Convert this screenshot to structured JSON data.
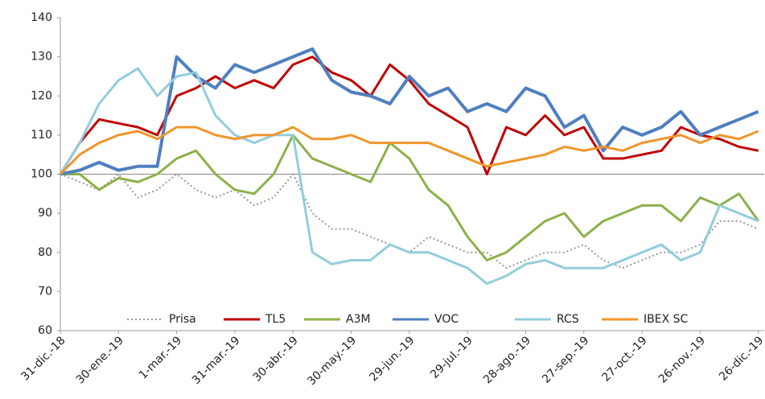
{
  "chart_data": {
    "type": "line",
    "x": [
      0,
      10,
      20,
      30,
      40,
      50,
      60,
      70,
      80,
      90,
      100,
      110,
      120,
      130,
      140,
      150,
      160,
      170,
      180,
      190,
      200,
      210,
      220,
      230,
      240,
      250,
      260,
      270,
      280,
      290,
      300,
      310,
      320,
      330,
      340,
      350,
      360
    ],
    "xlim": [
      0,
      363
    ],
    "xticks": [
      {
        "value": 0,
        "label": "31-dic.-18"
      },
      {
        "value": 30,
        "label": "30-ene.-19"
      },
      {
        "value": 60,
        "label": "1-mar.-19"
      },
      {
        "value": 90,
        "label": "31-mar.-19"
      },
      {
        "value": 120,
        "label": "30-abr.-19"
      },
      {
        "value": 150,
        "label": "30-may.-19"
      },
      {
        "value": 180,
        "label": "29-jun.-19"
      },
      {
        "value": 210,
        "label": "29-jul.-19"
      },
      {
        "value": 240,
        "label": "28-ago.-19"
      },
      {
        "value": 270,
        "label": "27-sep.-19"
      },
      {
        "value": 300,
        "label": "27-oct.-19"
      },
      {
        "value": 330,
        "label": "26-nov.-19"
      },
      {
        "value": 360,
        "label": "26-dic.-19"
      }
    ],
    "ylim": [
      60,
      140
    ],
    "yticks": [
      60,
      70,
      80,
      90,
      100,
      110,
      120,
      130,
      140
    ],
    "hline": 100,
    "legend": "bottom",
    "series": [
      {
        "name": "Prisa",
        "color": "#999999",
        "dash": true,
        "values": [
          100,
          98,
          96,
          100,
          94,
          96,
          100,
          96,
          94,
          96,
          92,
          94,
          100,
          90,
          86,
          86,
          84,
          82,
          80,
          84,
          82,
          80,
          80,
          76,
          78,
          80,
          80,
          82,
          78,
          76,
          78,
          80,
          80,
          82,
          88,
          88,
          86
        ]
      },
      {
        "name": "TL5",
        "color": "#c00000",
        "values": [
          100,
          108,
          114,
          113,
          112,
          110,
          120,
          122,
          125,
          122,
          124,
          122,
          128,
          130,
          126,
          124,
          120,
          128,
          124,
          118,
          115,
          112,
          100,
          112,
          110,
          115,
          110,
          112,
          104,
          104,
          105,
          106,
          112,
          110,
          109,
          107,
          106
        ]
      },
      {
        "name": "A3M",
        "color": "#8db04a",
        "values": [
          100,
          100,
          96,
          99,
          98,
          100,
          104,
          106,
          100,
          96,
          95,
          100,
          110,
          104,
          102,
          100,
          98,
          108,
          104,
          96,
          92,
          84,
          78,
          80,
          84,
          88,
          90,
          84,
          88,
          90,
          92,
          92,
          88,
          94,
          92,
          95,
          88
        ]
      },
      {
        "name": "VOC",
        "color": "#4f7fc1",
        "values": [
          100,
          101,
          103,
          101,
          102,
          102,
          130,
          125,
          122,
          128,
          126,
          128,
          130,
          132,
          124,
          121,
          120,
          118,
          125,
          120,
          122,
          116,
          118,
          116,
          122,
          120,
          112,
          115,
          106,
          112,
          110,
          112,
          116,
          110,
          112,
          114,
          116
        ]
      },
      {
        "name": "RCS",
        "color": "#92cddc",
        "values": [
          100,
          108,
          118,
          124,
          127,
          120,
          125,
          126,
          115,
          110,
          108,
          110,
          110,
          80,
          77,
          78,
          78,
          82,
          80,
          80,
          78,
          76,
          72,
          74,
          77,
          78,
          76,
          76,
          76,
          78,
          80,
          82,
          78,
          80,
          92,
          90,
          88
        ]
      },
      {
        "name": "IBEX SC",
        "color": "#f0952b",
        "values": [
          100,
          105,
          108,
          110,
          111,
          109,
          112,
          112,
          110,
          109,
          110,
          110,
          112,
          109,
          109,
          110,
          108,
          108,
          108,
          108,
          106,
          104,
          102,
          103,
          104,
          105,
          107,
          106,
          107,
          106,
          108,
          109,
          110,
          108,
          110,
          109,
          111
        ]
      }
    ]
  }
}
